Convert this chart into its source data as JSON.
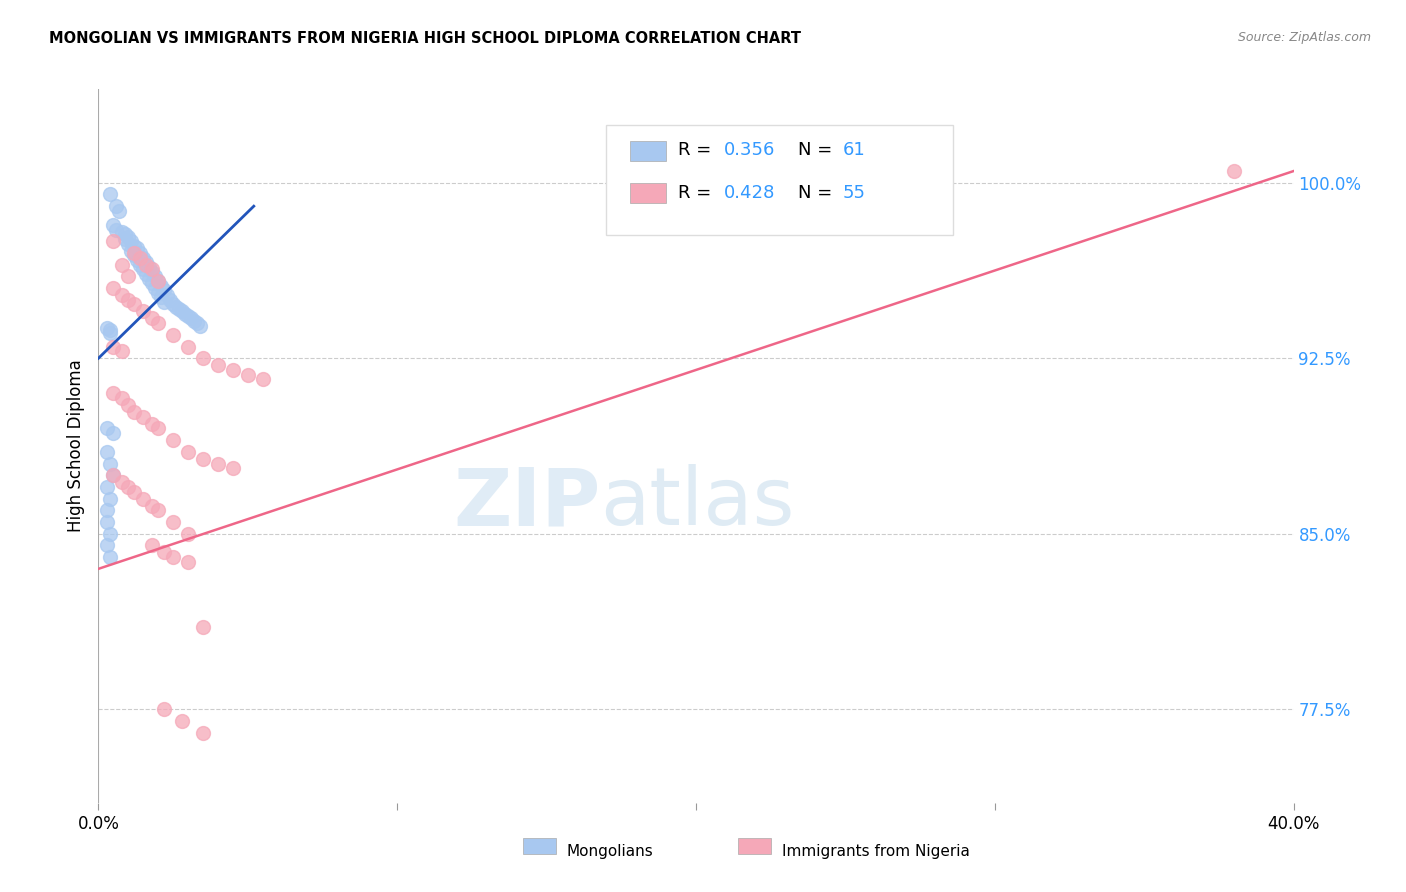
{
  "title": "MONGOLIAN VS IMMIGRANTS FROM NIGERIA HIGH SCHOOL DIPLOMA CORRELATION CHART",
  "source": "Source: ZipAtlas.com",
  "ylabel": "High School Diploma",
  "ytick_labels": [
    "77.5%",
    "85.0%",
    "92.5%",
    "100.0%"
  ],
  "ytick_values": [
    0.775,
    0.85,
    0.925,
    1.0
  ],
  "xlim": [
    0.0,
    0.4
  ],
  "ylim": [
    0.735,
    1.04
  ],
  "mongolian_color": "#a8c8f0",
  "nigeria_color": "#f5a8b8",
  "mongolian_line_color": "#2255bb",
  "nigeria_line_color": "#ee6688",
  "mongolian_scatter": [
    [
      0.004,
      0.995
    ],
    [
      0.006,
      0.99
    ],
    [
      0.007,
      0.988
    ],
    [
      0.005,
      0.982
    ],
    [
      0.006,
      0.98
    ],
    [
      0.008,
      0.979
    ],
    [
      0.009,
      0.978
    ],
    [
      0.01,
      0.977
    ],
    [
      0.009,
      0.976
    ],
    [
      0.011,
      0.975
    ],
    [
      0.01,
      0.974
    ],
    [
      0.012,
      0.973
    ],
    [
      0.013,
      0.972
    ],
    [
      0.011,
      0.971
    ],
    [
      0.014,
      0.97
    ],
    [
      0.012,
      0.969
    ],
    [
      0.015,
      0.968
    ],
    [
      0.013,
      0.967
    ],
    [
      0.016,
      0.966
    ],
    [
      0.014,
      0.965
    ],
    [
      0.017,
      0.964
    ],
    [
      0.015,
      0.963
    ],
    [
      0.018,
      0.962
    ],
    [
      0.016,
      0.961
    ],
    [
      0.019,
      0.96
    ],
    [
      0.017,
      0.959
    ],
    [
      0.02,
      0.958
    ],
    [
      0.018,
      0.957
    ],
    [
      0.021,
      0.956
    ],
    [
      0.019,
      0.955
    ],
    [
      0.022,
      0.954
    ],
    [
      0.02,
      0.953
    ],
    [
      0.023,
      0.952
    ],
    [
      0.021,
      0.951
    ],
    [
      0.024,
      0.95
    ],
    [
      0.022,
      0.949
    ],
    [
      0.025,
      0.948
    ],
    [
      0.026,
      0.947
    ],
    [
      0.027,
      0.946
    ],
    [
      0.028,
      0.945
    ],
    [
      0.029,
      0.944
    ],
    [
      0.03,
      0.943
    ],
    [
      0.031,
      0.942
    ],
    [
      0.032,
      0.941
    ],
    [
      0.033,
      0.94
    ],
    [
      0.034,
      0.939
    ],
    [
      0.003,
      0.938
    ],
    [
      0.004,
      0.937
    ],
    [
      0.004,
      0.936
    ],
    [
      0.003,
      0.895
    ],
    [
      0.005,
      0.893
    ],
    [
      0.003,
      0.885
    ],
    [
      0.004,
      0.88
    ],
    [
      0.005,
      0.875
    ],
    [
      0.003,
      0.87
    ],
    [
      0.004,
      0.865
    ],
    [
      0.003,
      0.86
    ],
    [
      0.003,
      0.855
    ],
    [
      0.004,
      0.85
    ],
    [
      0.003,
      0.845
    ],
    [
      0.004,
      0.84
    ]
  ],
  "nigeria_scatter": [
    [
      0.005,
      0.975
    ],
    [
      0.008,
      0.965
    ],
    [
      0.01,
      0.96
    ],
    [
      0.012,
      0.97
    ],
    [
      0.014,
      0.968
    ],
    [
      0.016,
      0.965
    ],
    [
      0.018,
      0.963
    ],
    [
      0.02,
      0.958
    ],
    [
      0.005,
      0.955
    ],
    [
      0.008,
      0.952
    ],
    [
      0.01,
      0.95
    ],
    [
      0.012,
      0.948
    ],
    [
      0.015,
      0.945
    ],
    [
      0.018,
      0.942
    ],
    [
      0.02,
      0.94
    ],
    [
      0.025,
      0.935
    ],
    [
      0.005,
      0.93
    ],
    [
      0.008,
      0.928
    ],
    [
      0.03,
      0.93
    ],
    [
      0.035,
      0.925
    ],
    [
      0.04,
      0.922
    ],
    [
      0.045,
      0.92
    ],
    [
      0.05,
      0.918
    ],
    [
      0.055,
      0.916
    ],
    [
      0.005,
      0.91
    ],
    [
      0.008,
      0.908
    ],
    [
      0.01,
      0.905
    ],
    [
      0.012,
      0.902
    ],
    [
      0.015,
      0.9
    ],
    [
      0.018,
      0.897
    ],
    [
      0.02,
      0.895
    ],
    [
      0.025,
      0.89
    ],
    [
      0.03,
      0.885
    ],
    [
      0.035,
      0.882
    ],
    [
      0.04,
      0.88
    ],
    [
      0.045,
      0.878
    ],
    [
      0.005,
      0.875
    ],
    [
      0.008,
      0.872
    ],
    [
      0.01,
      0.87
    ],
    [
      0.012,
      0.868
    ],
    [
      0.015,
      0.865
    ],
    [
      0.018,
      0.862
    ],
    [
      0.02,
      0.86
    ],
    [
      0.025,
      0.855
    ],
    [
      0.03,
      0.85
    ],
    [
      0.018,
      0.845
    ],
    [
      0.022,
      0.842
    ],
    [
      0.025,
      0.84
    ],
    [
      0.03,
      0.838
    ],
    [
      0.035,
      0.81
    ],
    [
      0.022,
      0.775
    ],
    [
      0.028,
      0.77
    ],
    [
      0.035,
      0.765
    ],
    [
      0.38,
      1.005
    ]
  ]
}
